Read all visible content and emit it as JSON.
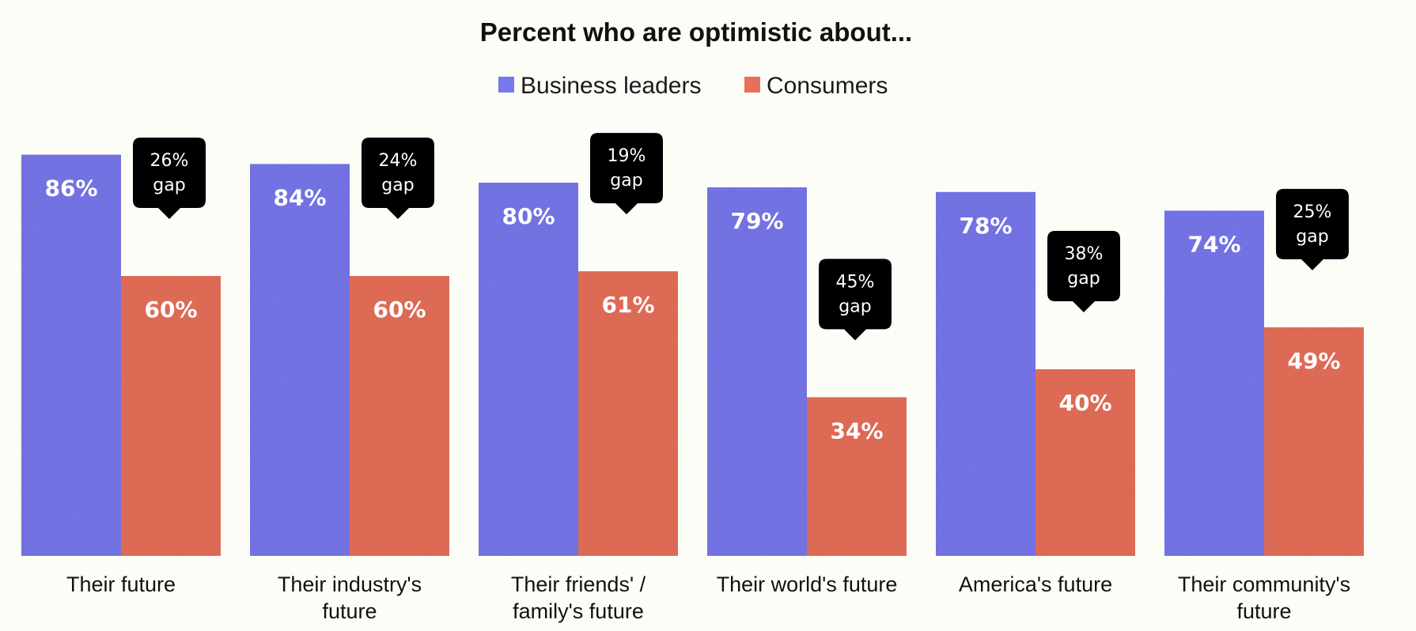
{
  "chart_data": {
    "type": "bar",
    "title": "Percent who are optimistic about...",
    "categories": [
      "Their future",
      "Their industry's future",
      "Their friends' / family's future",
      "Their world's future",
      "America's future",
      "Their community's future"
    ],
    "category_lines": [
      [
        "Their future"
      ],
      [
        "Their industry's",
        "future"
      ],
      [
        "Their friends' /",
        "family's future"
      ],
      [
        "Their world's future"
      ],
      [
        "America's future"
      ],
      [
        "Their community's",
        "future"
      ]
    ],
    "series": [
      {
        "name": "Business leaders",
        "color": "#7878ee",
        "values": [
          86,
          84,
          80,
          79,
          78,
          74
        ],
        "labels": [
          "86%",
          "84%",
          "80%",
          "79%",
          "78%",
          "74%"
        ]
      },
      {
        "name": "Consumers",
        "color": "#e8705a",
        "values": [
          60,
          60,
          61,
          34,
          40,
          49
        ],
        "labels": [
          "60%",
          "60%",
          "61%",
          "34%",
          "40%",
          "49%"
        ]
      }
    ],
    "gaps": [
      {
        "value": "26%",
        "word": "gap"
      },
      {
        "value": "24%",
        "word": "gap"
      },
      {
        "value": "19%",
        "word": "gap"
      },
      {
        "value": "45%",
        "word": "gap"
      },
      {
        "value": "38%",
        "word": "gap"
      },
      {
        "value": "25%",
        "word": "gap"
      }
    ],
    "ylim": [
      0,
      100
    ],
    "xlabel": "",
    "ylabel": "",
    "grid": false,
    "legend_position": "top-center",
    "callout_color": "#000000"
  }
}
